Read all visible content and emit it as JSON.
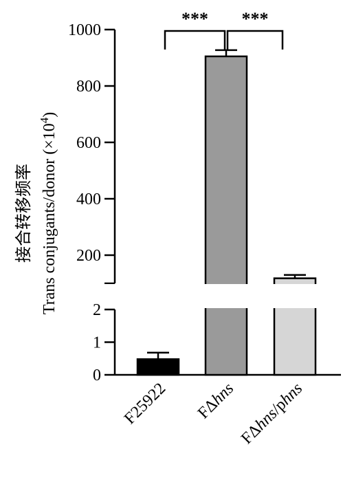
{
  "chart_data": {
    "type": "bar",
    "ylabel_cn": "接合转移频率",
    "ylabel": "Trans conjugants/donor (×10",
    "ylabel_sup": "4",
    "ylabel_close": ")",
    "categories": [
      {
        "parts": [
          {
            "t": "F25922",
            "i": false
          }
        ]
      },
      {
        "parts": [
          {
            "t": "FΔ",
            "i": false
          },
          {
            "t": "hns",
            "i": true
          }
        ]
      },
      {
        "parts": [
          {
            "t": "FΔ",
            "i": false
          },
          {
            "t": "hns",
            "i": true
          },
          {
            "t": "/p",
            "i": false
          },
          {
            "t": "hns",
            "i": true
          }
        ]
      }
    ],
    "values": [
      0.48,
      905,
      118
    ],
    "errors": [
      0.2,
      22,
      12
    ],
    "bar_colors": [
      "#000000",
      "#9a9a9a",
      "#d6d6d6"
    ],
    "axis_break": true,
    "lower_segment": {
      "ylim": [
        0,
        2
      ],
      "ticks": [
        0,
        1,
        2
      ]
    },
    "upper_segment": {
      "ylim": [
        100,
        1000
      ],
      "ticks": [
        200,
        400,
        600,
        800,
        1000
      ]
    },
    "significance": [
      {
        "from": 0,
        "to": 1,
        "label": "***"
      },
      {
        "from": 1,
        "to": 2,
        "label": "***"
      }
    ]
  }
}
